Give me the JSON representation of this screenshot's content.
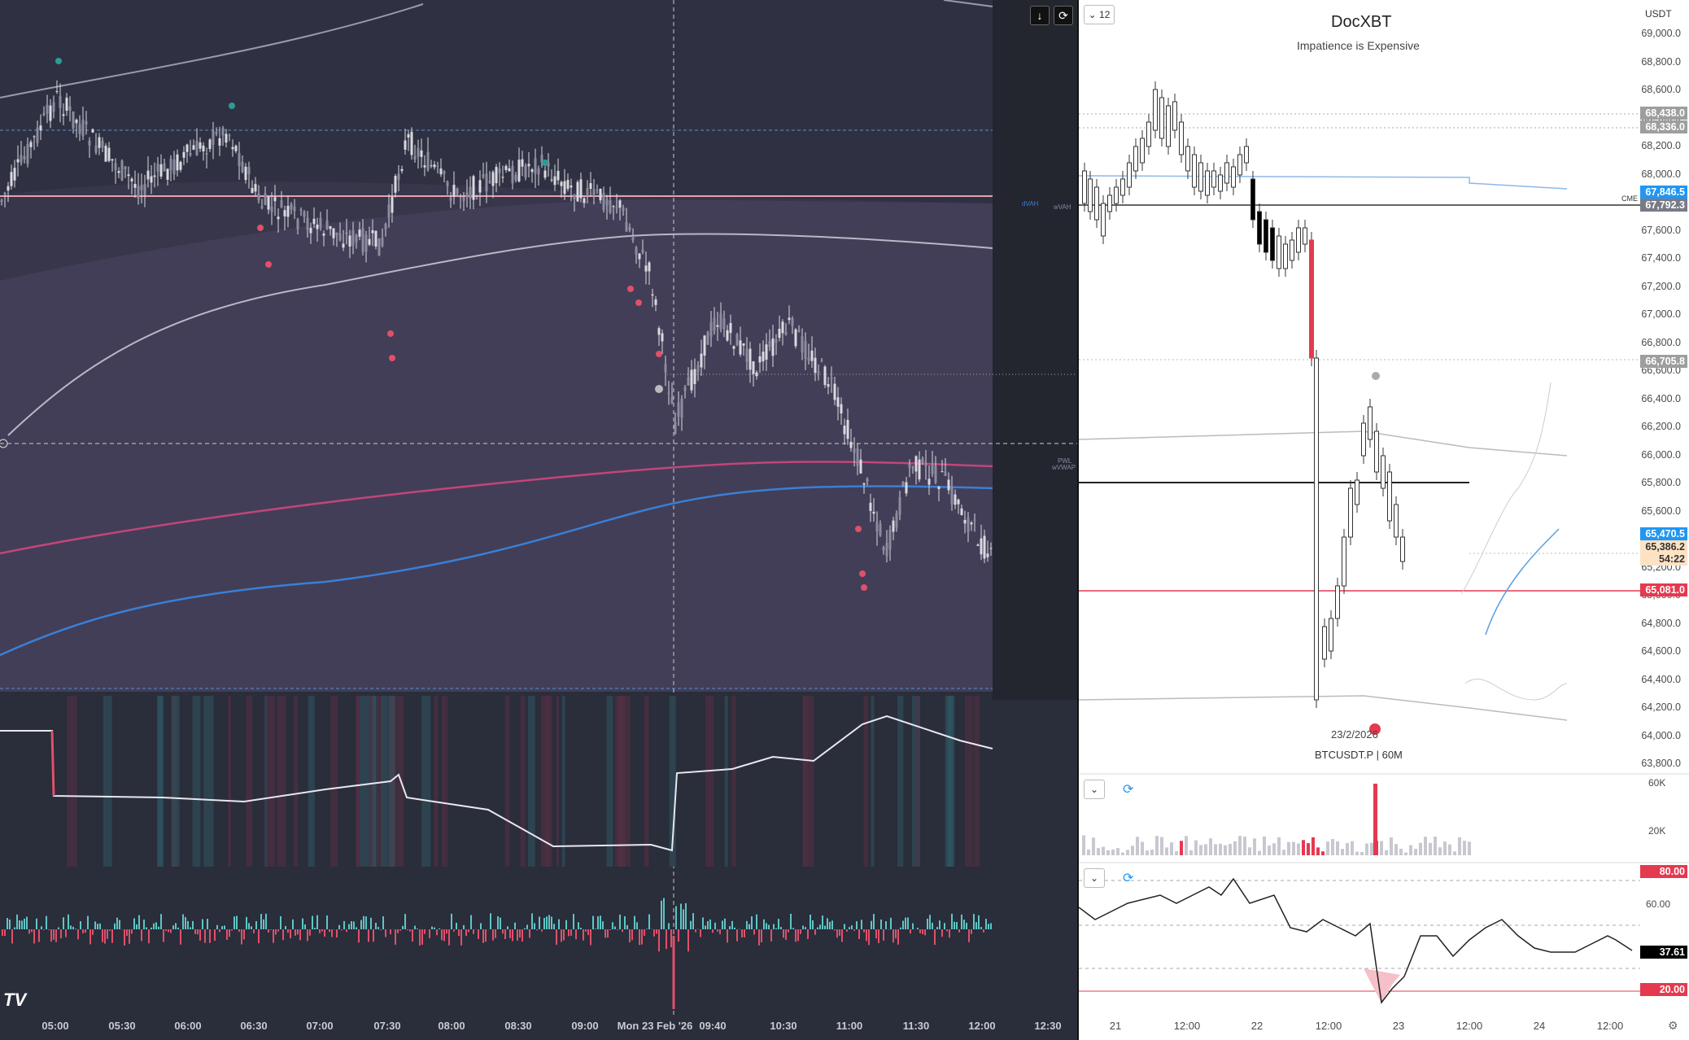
{
  "left_chart": {
    "time_axis": [
      "05:00",
      "05:30",
      "06:00",
      "06:30",
      "07:00",
      "07:30",
      "08:00",
      "08:30",
      "09:00",
      "Mon 23 Feb '26",
      "09:40",
      "10:30",
      "11:00",
      "11:30",
      "12:00",
      "12:30"
    ],
    "line_labels": {
      "dvah": "dVAH",
      "wvah": "wVAH",
      "pwl": "PWL",
      "wvwap": "wVWAP"
    },
    "colors": {
      "bg": "#2a2d3a",
      "band": "#4a4560",
      "candle": "#d9d9e0",
      "vwap_pink": "#c2457a",
      "vwap_blue": "#3a7fd6",
      "pivot_red": "#e0506a",
      "pivot_teal": "#2a9d94",
      "bar_up": "#5ec6c6",
      "bar_down": "#e0506a"
    },
    "logo": "TV",
    "buttons": {
      "download_icon": "download-icon",
      "refresh_icon": "refresh-icon"
    }
  },
  "right_chart": {
    "title": "DocXBT",
    "subtitle": "Impatience is Expensive",
    "interval_selector": "12",
    "currency": "USDT",
    "symbol_line": "BTCUSDT.P | 60M",
    "date_marker": "23/2/2026",
    "cme_label": "CME",
    "price_axis": [
      "69,000.0",
      "68,800.0",
      "68,600.0",
      "68,400.0",
      "68,200.0",
      "68,000.0",
      "67,800.0",
      "67,600.0",
      "67,400.0",
      "67,200.0",
      "67,000.0",
      "66,800.0",
      "66,600.0",
      "66,400.0",
      "66,200.0",
      "66,000.0",
      "65,800.0",
      "65,600.0",
      "65,400.0",
      "65,200.0",
      "65,000.0",
      "64,800.0",
      "64,600.0",
      "64,400.0",
      "64,200.0",
      "64,000.0",
      "63,800.0"
    ],
    "price_tags": [
      {
        "value": "68,438.0",
        "color": "#9e9e9e"
      },
      {
        "value": "68,336.0",
        "color": "#9e9e9e"
      },
      {
        "value": "67,846.5",
        "color": "#2196f3"
      },
      {
        "value": "67,792.3",
        "color": "#787b86"
      },
      {
        "value": "66,705.8",
        "color": "#9e9e9e"
      },
      {
        "value": "65,470.5",
        "color": "#2196f3"
      },
      {
        "value": "65,386.2",
        "color": "#fde2c4"
      },
      {
        "value": "54:22",
        "color": "#fde2c4"
      },
      {
        "value": "65,081.0",
        "color": "#e53950"
      }
    ],
    "time_axis": [
      "21",
      "12:00",
      "22",
      "12:00",
      "23",
      "12:00",
      "24",
      "12:00"
    ],
    "volume_axis": [
      "60K",
      "20K"
    ],
    "rsi_axis": {
      "upper": "80.00",
      "mid": "60.00",
      "current": "37.61",
      "lower": "20.00"
    },
    "colors": {
      "up": "#ffffff",
      "down": "#000000",
      "red": "#e53950",
      "blue": "#2196f3"
    }
  }
}
